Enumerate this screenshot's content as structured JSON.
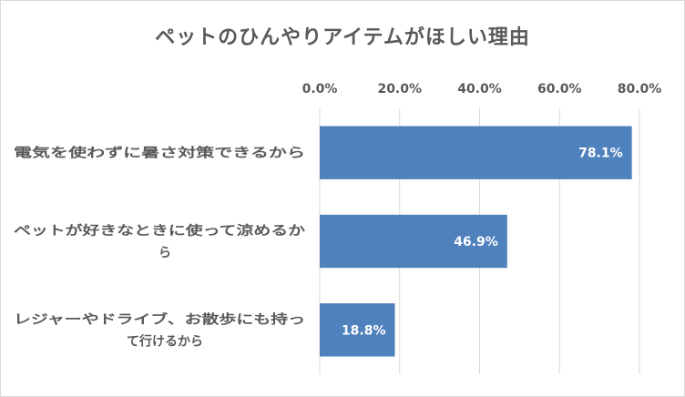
{
  "chart_data": {
    "type": "bar",
    "orientation": "horizontal",
    "title": "ペットのひんやりアイテムがほしい理由",
    "categories": [
      [
        "電気を使わずに暑さ対策できるから"
      ],
      [
        "ペットが好きなときに使って涼めるか",
        "ら"
      ],
      [
        "レジャーやドライブ、お散歩にも持っ",
        "て行けるから"
      ]
    ],
    "values": [
      78.1,
      46.9,
      18.8
    ],
    "data_labels": [
      "78.1%",
      "46.9%",
      "18.8%"
    ],
    "xlim": [
      0,
      80
    ],
    "xticks": [
      0,
      20,
      40,
      60,
      80
    ],
    "xtick_labels": [
      "0.0%",
      "20.0%",
      "40.0%",
      "60.0%",
      "80.0%"
    ],
    "axis_position": "top",
    "grid": true,
    "legend": "none",
    "bar_color": "#4f81bd"
  }
}
